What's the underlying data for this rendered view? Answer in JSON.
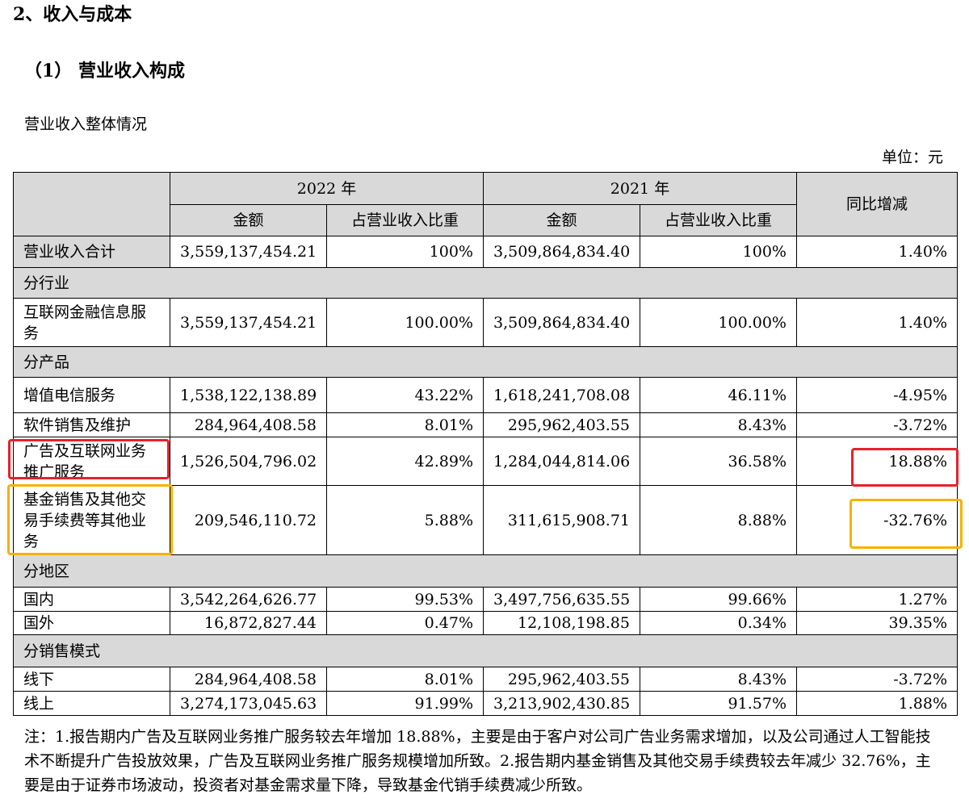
{
  "headings": {
    "section": "2、收入与成本",
    "subsection": "（1） 营业收入构成",
    "table_title": "营业收入整体情况",
    "unit": "单位：元"
  },
  "table": {
    "header": {
      "year_2022": "2022 年",
      "year_2021": "2021 年",
      "yoy": "同比增减",
      "amount": "金额",
      "ratio": "占营业收入比重"
    },
    "total": {
      "label": "营业收入合计",
      "amt_2022": "3,559,137,454.21",
      "ratio_2022": "100%",
      "amt_2021": "3,509,864,834.40",
      "ratio_2021": "100%",
      "yoy": "1.40%"
    },
    "by_industry": {
      "section": "分行业",
      "rows": [
        {
          "label": "互联网金融信息服务",
          "amt_2022": "3,559,137,454.21",
          "ratio_2022": "100.00%",
          "amt_2021": "3,509,864,834.40",
          "ratio_2021": "100.00%",
          "yoy": "1.40%"
        }
      ]
    },
    "by_product": {
      "section": "分产品",
      "rows": [
        {
          "label": "增值电信服务",
          "amt_2022": "1,538,122,138.89",
          "ratio_2022": "43.22%",
          "amt_2021": "1,618,241,708.08",
          "ratio_2021": "46.11%",
          "yoy": "-4.95%"
        },
        {
          "label": "软件销售及维护",
          "amt_2022": "284,964,408.58",
          "ratio_2022": "8.01%",
          "amt_2021": "295,962,403.55",
          "ratio_2021": "8.43%",
          "yoy": "-3.72%"
        },
        {
          "label": "广告及互联网业务推广服务",
          "amt_2022": "1,526,504,796.02",
          "ratio_2022": "42.89%",
          "amt_2021": "1,284,044,814.06",
          "ratio_2021": "36.58%",
          "yoy": "18.88%"
        },
        {
          "label": "基金销售及其他交易手续费等其他业务",
          "amt_2022": "209,546,110.72",
          "ratio_2022": "5.88%",
          "amt_2021": "311,615,908.71",
          "ratio_2021": "8.88%",
          "yoy": "-32.76%"
        }
      ]
    },
    "by_region": {
      "section": "分地区",
      "rows": [
        {
          "label": "国内",
          "amt_2022": "3,542,264,626.77",
          "ratio_2022": "99.53%",
          "amt_2021": "3,497,756,635.55",
          "ratio_2021": "99.66%",
          "yoy": "1.27%"
        },
        {
          "label": "国外",
          "amt_2022": "16,872,827.44",
          "ratio_2022": "0.47%",
          "amt_2021": "12,108,198.85",
          "ratio_2021": "0.34%",
          "yoy": "39.35%"
        }
      ]
    },
    "by_sales_mode": {
      "section": "分销售模式",
      "rows": [
        {
          "label": "线下",
          "amt_2022": "284,964,408.58",
          "ratio_2022": "8.01%",
          "amt_2021": "295,962,403.55",
          "ratio_2021": "8.43%",
          "yoy": "-3.72%"
        },
        {
          "label": "线上",
          "amt_2022": "3,274,173,045.63",
          "ratio_2022": "91.99%",
          "amt_2021": "3,213,902,430.85",
          "ratio_2021": "91.57%",
          "yoy": "1.88%"
        }
      ]
    }
  },
  "note": "注：1.报告期内广告及互联网业务推广服务较去年增加 18.88%，主要是由于客户对公司广告业务需求增加，以及公司通过人工智能技术不断提升广告投放效果，广告及互联网业务推广服务规模增加所致。2.报告期内基金销售及其他交易手续费较去年减少 32.76%，主要是由于证券市场波动，投资者对基金需求量下降，导致基金代销手续费减少所致。",
  "highlight_colors": {
    "red": "#e8212b",
    "orange": "#f5b200"
  }
}
